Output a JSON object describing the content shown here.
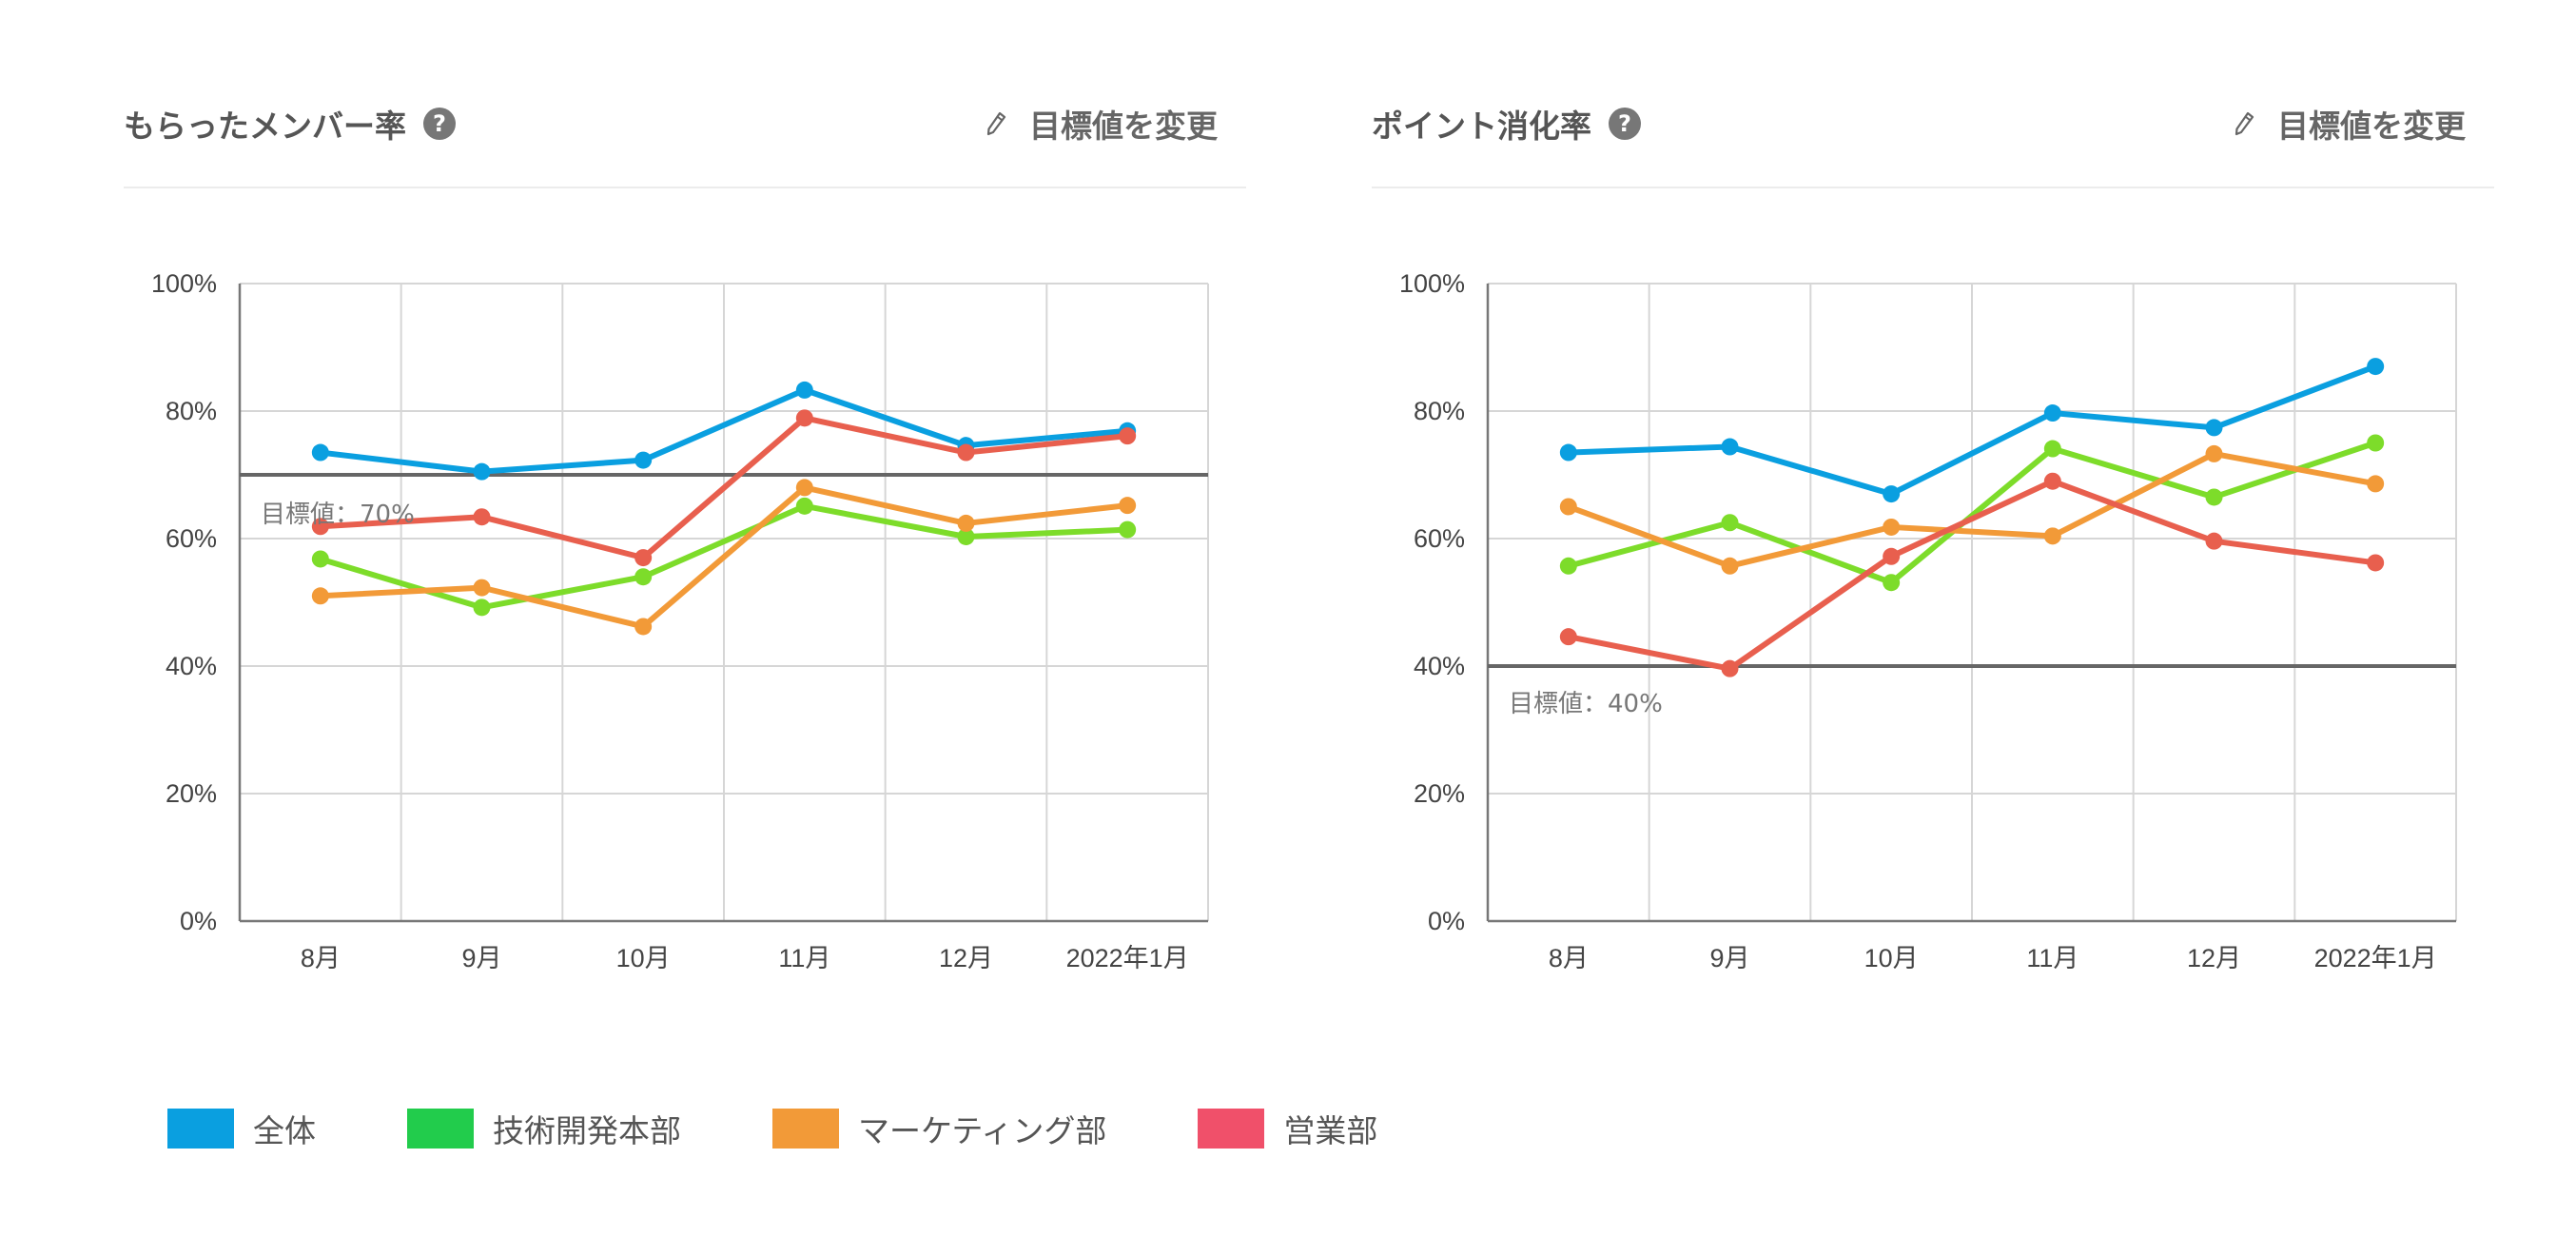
{
  "colors": {
    "series": [
      "#0a9fe0",
      "#7ddc2a",
      "#f29a38",
      "#e85f4e"
    ],
    "legend": [
      "#0a9fe0",
      "#22cc4c",
      "#f29a38",
      "#f0506a"
    ]
  },
  "panels": [
    {
      "title": "もらったメンバー率",
      "help_icon": "?",
      "edit_label": "目標値を変更"
    },
    {
      "title": "ポイント消化率",
      "help_icon": "?",
      "edit_label": "目標値を変更"
    }
  ],
  "legend": [
    {
      "label": "全体"
    },
    {
      "label": "技術開発本部"
    },
    {
      "label": "マーケティング部"
    },
    {
      "label": "営業部"
    }
  ],
  "chart_data": [
    {
      "type": "line",
      "title": "もらったメンバー率",
      "categories": [
        "8月",
        "9月",
        "10月",
        "11月",
        "12月",
        "2022年1月"
      ],
      "ylim": [
        0,
        100
      ],
      "yticks": [
        "0%",
        "20%",
        "40%",
        "60%",
        "80%",
        "100%"
      ],
      "grid": true,
      "target": {
        "value": 70,
        "label": "目標値：70%"
      },
      "series": [
        {
          "name": "全体",
          "values": [
            73.5,
            70.5,
            72.3,
            83.3,
            74.6,
            76.9
          ]
        },
        {
          "name": "技術開発本部",
          "values": [
            56.8,
            49.2,
            54.0,
            65.1,
            60.3,
            61.4
          ]
        },
        {
          "name": "マーケティング部",
          "values": [
            51.0,
            52.3,
            46.2,
            68.0,
            62.4,
            65.2
          ]
        },
        {
          "name": "営業部",
          "values": [
            61.9,
            63.4,
            57.0,
            78.9,
            73.5,
            76.1
          ]
        }
      ]
    },
    {
      "type": "line",
      "title": "ポイント消化率",
      "categories": [
        "8月",
        "9月",
        "10月",
        "11月",
        "12月",
        "2022年1月"
      ],
      "ylim": [
        0,
        100
      ],
      "yticks": [
        "0%",
        "20%",
        "40%",
        "60%",
        "80%",
        "100%"
      ],
      "grid": true,
      "target": {
        "value": 40,
        "label": "目標値：40%"
      },
      "series": [
        {
          "name": "全体",
          "values": [
            73.5,
            74.4,
            67.0,
            79.7,
            77.4,
            87.0
          ]
        },
        {
          "name": "技術開発本部",
          "values": [
            55.7,
            62.5,
            53.1,
            74.1,
            66.5,
            75.0
          ]
        },
        {
          "name": "マーケティング部",
          "values": [
            65.0,
            55.7,
            61.8,
            60.4,
            73.3,
            68.6
          ]
        },
        {
          "name": "営業部",
          "values": [
            44.6,
            39.6,
            57.2,
            69.0,
            59.6,
            56.2
          ]
        }
      ]
    }
  ]
}
